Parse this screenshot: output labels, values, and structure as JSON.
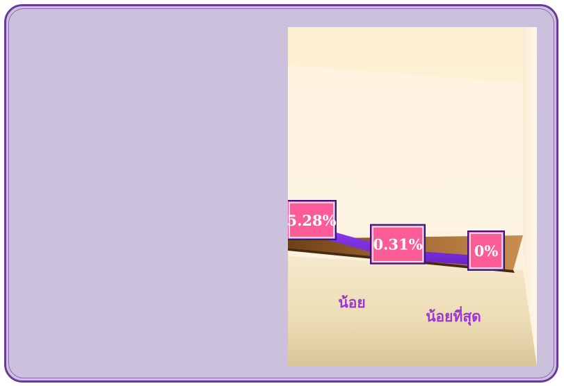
{
  "chart_data": {
    "type": "line",
    "categories": [
      "",
      "น้อย",
      "น้อยที่สุด"
    ],
    "values": [
      5.28,
      0.31,
      0
    ],
    "data_labels": [
      "5.28%",
      "0.31%",
      "0%"
    ],
    "title": "",
    "xlabel": "",
    "ylabel": "",
    "ylim": [
      0,
      60
    ],
    "grid": false,
    "legend": "none",
    "three_d": true,
    "colors": {
      "series": "#7a2ed8",
      "label_fill": "#fb5c97",
      "label_border": "#2a1a8a",
      "category_text": "#9b35d6",
      "floor": "#8f5a2a",
      "frame_bg": "#cbc1dd",
      "frame_border": "#6a3a9a"
    }
  }
}
